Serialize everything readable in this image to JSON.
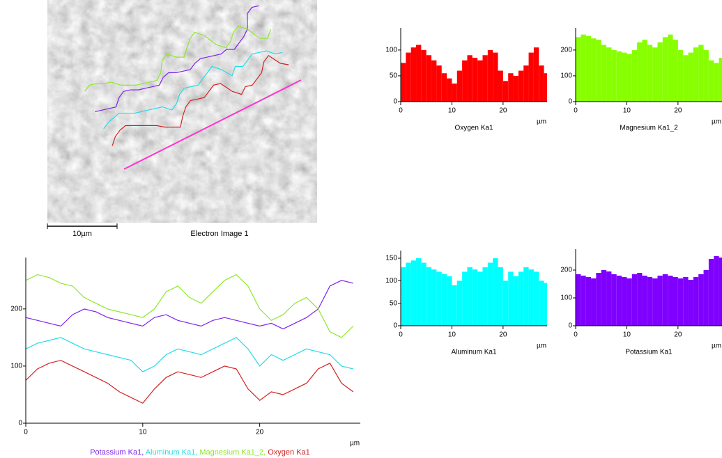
{
  "image": {
    "title": "Electron Image 1",
    "scale_bar": "10µm"
  },
  "chart_data": [
    {
      "type": "line",
      "x": [
        0,
        1,
        2,
        3,
        4,
        5,
        6,
        7,
        8,
        9,
        10,
        11,
        12,
        13,
        14,
        15,
        16,
        17,
        18,
        19,
        20,
        21,
        22,
        23,
        24,
        25,
        26,
        27,
        28
      ],
      "series": [
        {
          "name": "Potassium Ka1",
          "color": "#7f22ef",
          "values": [
            185,
            180,
            175,
            170,
            190,
            200,
            195,
            185,
            180,
            175,
            170,
            185,
            190,
            180,
            175,
            170,
            180,
            185,
            180,
            175,
            170,
            175,
            165,
            175,
            185,
            200,
            240,
            250,
            245
          ]
        },
        {
          "name": "Aluminum Ka1",
          "color": "#22dde8",
          "values": [
            130,
            140,
            145,
            150,
            140,
            130,
            125,
            120,
            115,
            110,
            90,
            100,
            120,
            130,
            125,
            120,
            130,
            140,
            150,
            130,
            100,
            120,
            110,
            120,
            130,
            125,
            120,
            100,
            95
          ]
        },
        {
          "name": "Magnesium Ka1_2",
          "color": "#8ee82a",
          "values": [
            250,
            260,
            255,
            245,
            240,
            220,
            210,
            200,
            195,
            190,
            185,
            200,
            230,
            240,
            220,
            210,
            230,
            250,
            260,
            240,
            200,
            180,
            190,
            210,
            220,
            200,
            160,
            150,
            170
          ]
        },
        {
          "name": "Oxygen Ka1",
          "color": "#d42020",
          "values": [
            75,
            95,
            105,
            110,
            100,
            90,
            80,
            70,
            55,
            45,
            35,
            60,
            80,
            90,
            85,
            80,
            90,
            100,
            95,
            60,
            40,
            55,
            50,
            60,
            70,
            95,
            105,
            70,
            55
          ]
        }
      ],
      "xlim": [
        0,
        28.6
      ],
      "ylim": [
        0,
        290
      ],
      "xticks": [
        0,
        10,
        20
      ],
      "yticks": [
        0,
        100,
        200
      ],
      "x_unit": "µm",
      "legend_separator": ", "
    },
    {
      "type": "area",
      "title": "Oxygen Ka1",
      "color": "#ff0000",
      "x": [
        0,
        1,
        2,
        3,
        4,
        5,
        6,
        7,
        8,
        9,
        10,
        11,
        12,
        13,
        14,
        15,
        16,
        17,
        18,
        19,
        20,
        21,
        22,
        23,
        24,
        25,
        26,
        27,
        28
      ],
      "values": [
        75,
        95,
        105,
        110,
        100,
        90,
        80,
        70,
        55,
        45,
        35,
        60,
        80,
        90,
        85,
        80,
        90,
        100,
        95,
        60,
        40,
        55,
        50,
        60,
        70,
        95,
        105,
        70,
        55
      ],
      "xlim": [
        0,
        28.6
      ],
      "ylim": [
        0,
        143
      ],
      "xticks": [
        0,
        10,
        20
      ],
      "yticks": [
        0,
        50,
        100
      ],
      "x_unit": "µm"
    },
    {
      "type": "area",
      "title": "Magnesium Ka1_2",
      "color": "#88ff00",
      "x": [
        0,
        1,
        2,
        3,
        4,
        5,
        6,
        7,
        8,
        9,
        10,
        11,
        12,
        13,
        14,
        15,
        16,
        17,
        18,
        19,
        20,
        21,
        22,
        23,
        24,
        25,
        26,
        27,
        28
      ],
      "values": [
        250,
        260,
        255,
        245,
        240,
        220,
        210,
        200,
        195,
        190,
        185,
        200,
        230,
        240,
        220,
        210,
        230,
        250,
        260,
        240,
        200,
        180,
        190,
        210,
        220,
        200,
        160,
        150,
        170
      ],
      "xlim": [
        0,
        28.6
      ],
      "ylim": [
        0,
        286
      ],
      "xticks": [
        0,
        10,
        20
      ],
      "yticks": [
        0,
        100,
        200
      ],
      "x_unit": "µm"
    },
    {
      "type": "area",
      "title": "Aluminum Ka1",
      "color": "#00ffff",
      "x": [
        0,
        1,
        2,
        3,
        4,
        5,
        6,
        7,
        8,
        9,
        10,
        11,
        12,
        13,
        14,
        15,
        16,
        17,
        18,
        19,
        20,
        21,
        22,
        23,
        24,
        25,
        26,
        27,
        28
      ],
      "values": [
        130,
        140,
        145,
        150,
        140,
        130,
        125,
        120,
        115,
        110,
        90,
        100,
        120,
        130,
        125,
        120,
        130,
        140,
        150,
        130,
        100,
        120,
        110,
        120,
        130,
        125,
        120,
        100,
        95
      ],
      "xlim": [
        0,
        28.6
      ],
      "ylim": [
        0,
        167
      ],
      "xticks": [
        0,
        10,
        20
      ],
      "yticks": [
        0,
        50,
        100,
        150
      ],
      "x_unit": "µm"
    },
    {
      "type": "area",
      "title": "Potassium Ka1",
      "color": "#7f00ff",
      "x": [
        0,
        1,
        2,
        3,
        4,
        5,
        6,
        7,
        8,
        9,
        10,
        11,
        12,
        13,
        14,
        15,
        16,
        17,
        18,
        19,
        20,
        21,
        22,
        23,
        24,
        25,
        26,
        27,
        28
      ],
      "values": [
        185,
        180,
        175,
        170,
        190,
        200,
        195,
        185,
        180,
        175,
        170,
        185,
        190,
        180,
        175,
        170,
        180,
        185,
        180,
        175,
        170,
        175,
        165,
        175,
        185,
        200,
        240,
        250,
        245
      ],
      "xlim": [
        0,
        28.6
      ],
      "ylim": [
        0,
        275
      ],
      "xticks": [
        0,
        10,
        20
      ],
      "yticks": [
        0,
        100,
        200
      ],
      "x_unit": "µm"
    }
  ]
}
